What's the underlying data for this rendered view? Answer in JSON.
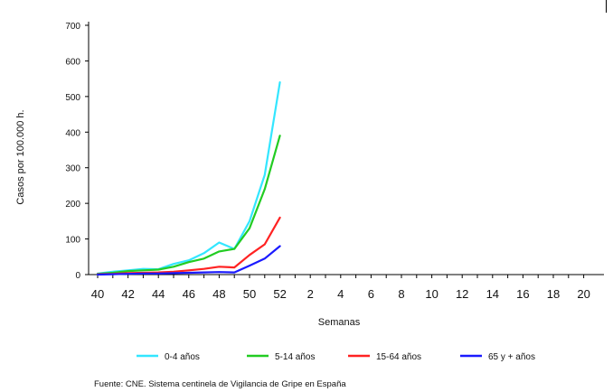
{
  "chart_data": {
    "type": "line",
    "xlabel": "Semanas",
    "ylabel": "Casos por 100.000 h.",
    "ylim": [
      0,
      700
    ],
    "yticks": [
      "0",
      "100",
      "200",
      "300",
      "400",
      "500",
      "600",
      "700"
    ],
    "x_ticks": [
      "40",
      "42",
      "44",
      "46",
      "48",
      "50",
      "52",
      "2",
      "4",
      "6",
      "8",
      "10",
      "12",
      "14",
      "16",
      "18",
      "20"
    ],
    "x_weeks": [
      "40",
      "41",
      "42",
      "43",
      "44",
      "45",
      "46",
      "47",
      "48",
      "49",
      "50",
      "51",
      "52"
    ],
    "series": [
      {
        "name": "0-4 años",
        "color": "#33e6ff",
        "values": [
          3,
          8,
          12,
          16,
          15,
          30,
          40,
          60,
          90,
          72,
          150,
          280,
          540
        ]
      },
      {
        "name": "5-14 años",
        "color": "#22cc22",
        "values": [
          2,
          5,
          10,
          12,
          14,
          22,
          35,
          45,
          65,
          72,
          130,
          240,
          390
        ]
      },
      {
        "name": "15-64 años",
        "color": "#ff2222",
        "values": [
          1,
          2,
          4,
          5,
          6,
          8,
          12,
          16,
          22,
          20,
          55,
          85,
          160
        ]
      },
      {
        "name": "65 y + años",
        "color": "#1a1aff",
        "values": [
          0,
          1,
          2,
          3,
          3,
          4,
          5,
          6,
          7,
          6,
          25,
          45,
          80
        ]
      }
    ],
    "legend_position": "bottom",
    "grid": false,
    "source": "Fuente: CNE. Sistema centinela de Vigilancia de Gripe en España"
  }
}
